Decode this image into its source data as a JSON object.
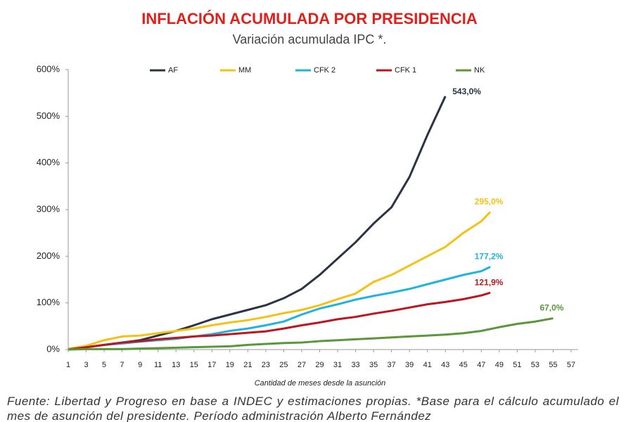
{
  "chart_data": {
    "type": "line",
    "title": "INFLACIÓN ACUMULADA POR PRESIDENCIA",
    "subtitle": "Variación acumulada IPC *.",
    "x_label": "Cantidad de meses desde la asunción",
    "source": "Fuente: Libertad y Progreso en base a INDEC y estimaciones propias. *Base para el cálculo acumulado el mes de asunción del presidente. Período administración Alberto Fernández",
    "xlim": [
      1,
      57
    ],
    "xticks": [
      1,
      3,
      5,
      7,
      9,
      11,
      13,
      15,
      17,
      19,
      21,
      23,
      25,
      27,
      29,
      31,
      33,
      35,
      37,
      39,
      41,
      43,
      45,
      47,
      49,
      51,
      53,
      55,
      57
    ],
    "ylim": [
      0,
      600
    ],
    "yticks": [
      {
        "value": 0,
        "label": "0%"
      },
      {
        "value": 100,
        "label": "100%"
      },
      {
        "value": 200,
        "label": "200%"
      },
      {
        "value": 300,
        "label": "300%"
      },
      {
        "value": 400,
        "label": "400%"
      },
      {
        "value": 500,
        "label": "500%"
      },
      {
        "value": 600,
        "label": "600%"
      }
    ],
    "grid": false,
    "legend": "top",
    "series": [
      {
        "name": "AF",
        "color": "#2b3442",
        "x": [
          1,
          3,
          5,
          7,
          9,
          11,
          13,
          15,
          17,
          19,
          21,
          23,
          25,
          27,
          29,
          31,
          33,
          35,
          37,
          39,
          41,
          43
        ],
        "values": [
          0,
          5,
          10,
          15,
          20,
          30,
          40,
          52,
          65,
          75,
          85,
          95,
          110,
          130,
          160,
          195,
          230,
          270,
          305,
          370,
          460,
          543
        ],
        "end_label": "543,0%"
      },
      {
        "name": "MM",
        "color": "#f2c314",
        "x": [
          1,
          3,
          5,
          7,
          9,
          11,
          13,
          15,
          17,
          19,
          21,
          23,
          25,
          27,
          29,
          31,
          33,
          35,
          37,
          39,
          41,
          43,
          45,
          47,
          48
        ],
        "values": [
          2,
          8,
          20,
          28,
          30,
          35,
          40,
          45,
          52,
          58,
          63,
          70,
          78,
          85,
          95,
          108,
          120,
          145,
          160,
          180,
          200,
          220,
          250,
          275,
          295
        ],
        "end_label": "295,0%"
      },
      {
        "name": "CFK 2",
        "color": "#1fb3df",
        "x": [
          1,
          3,
          5,
          7,
          9,
          11,
          13,
          15,
          17,
          19,
          21,
          23,
          25,
          27,
          29,
          31,
          33,
          35,
          37,
          39,
          41,
          43,
          45,
          47,
          48
        ],
        "values": [
          0,
          5,
          10,
          13,
          17,
          20,
          23,
          28,
          33,
          40,
          45,
          52,
          60,
          75,
          88,
          97,
          107,
          115,
          122,
          130,
          140,
          150,
          160,
          168,
          177.2
        ],
        "end_label": "177,2%"
      },
      {
        "name": "CFK 1",
        "color": "#c0141e",
        "x": [
          1,
          3,
          5,
          7,
          9,
          11,
          13,
          15,
          17,
          19,
          21,
          23,
          25,
          27,
          29,
          31,
          33,
          35,
          37,
          39,
          41,
          43,
          45,
          47,
          48
        ],
        "values": [
          0,
          5,
          10,
          15,
          18,
          22,
          25,
          28,
          30,
          33,
          36,
          39,
          45,
          52,
          58,
          65,
          70,
          77,
          83,
          90,
          97,
          102,
          108,
          116,
          121.9
        ],
        "end_label": "121,9%"
      },
      {
        "name": "NK",
        "color": "#5a973a",
        "x": [
          1,
          3,
          5,
          7,
          9,
          11,
          13,
          15,
          17,
          19,
          21,
          23,
          25,
          27,
          29,
          31,
          33,
          35,
          37,
          39,
          41,
          43,
          45,
          47,
          49,
          51,
          53,
          55
        ],
        "values": [
          0,
          1,
          1,
          1,
          2,
          3,
          4,
          5,
          6,
          7,
          10,
          12,
          14,
          15,
          18,
          20,
          22,
          24,
          26,
          28,
          30,
          32,
          35,
          40,
          48,
          55,
          60,
          67
        ],
        "end_label": "67,0%"
      }
    ]
  }
}
